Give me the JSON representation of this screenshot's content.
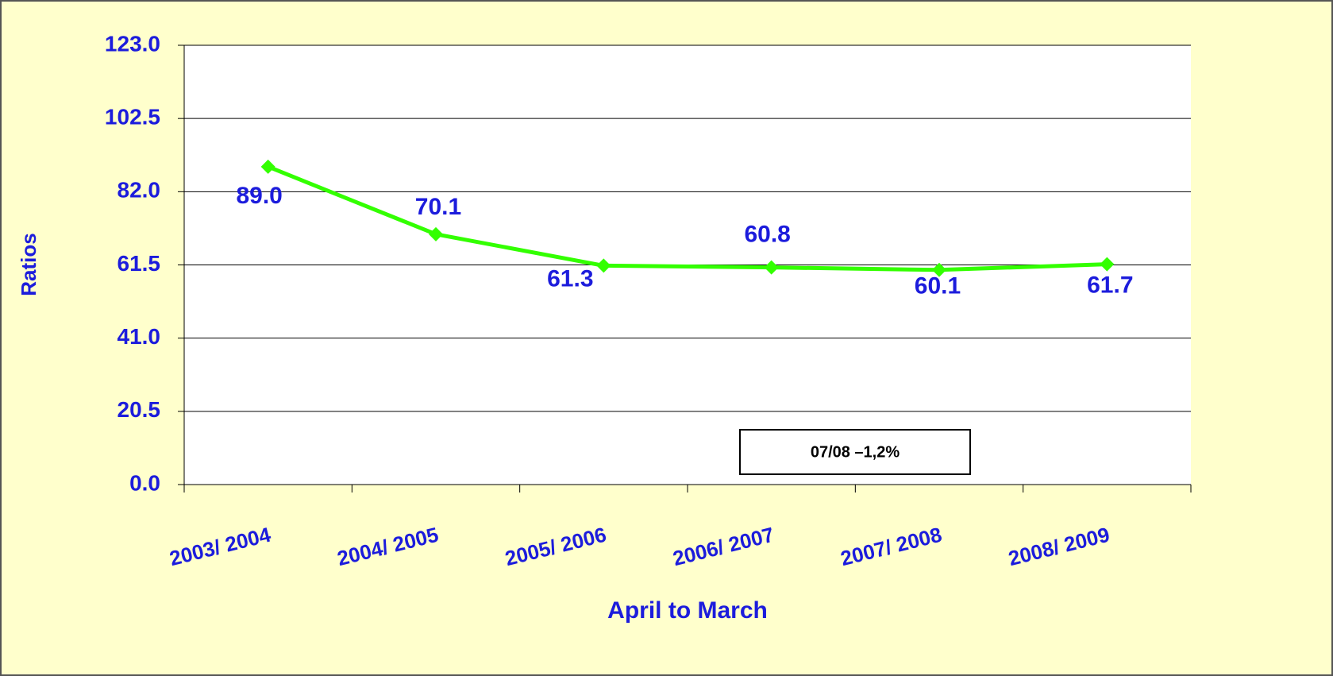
{
  "chart_data": {
    "type": "line",
    "categories": [
      "2003/ 2004",
      "2004/ 2005",
      "2005/ 2006",
      "2006/ 2007",
      "2007/ 2008",
      "2008/ 2009"
    ],
    "series": [
      {
        "color": "#33ff00",
        "values": [
          89.0,
          70.1,
          61.3,
          60.8,
          60.1,
          61.7
        ],
        "value_labels": [
          "89.0",
          "70.1",
          "61.3",
          "60.8",
          "60.1",
          "61.7"
        ]
      }
    ],
    "ylim": [
      0,
      123
    ],
    "yticks": [
      {
        "value": 0,
        "label": "0.0"
      },
      20.5,
      {
        "value": 41,
        "label": "41.0"
      },
      61.5,
      {
        "value": 82,
        "label": "82.0"
      },
      102.5,
      {
        "value": 123,
        "label": "123.0"
      }
    ],
    "grid": true,
    "xlabel": "April to March",
    "ylabel": "Ratios",
    "annotation": "07/08 –1,2%"
  }
}
